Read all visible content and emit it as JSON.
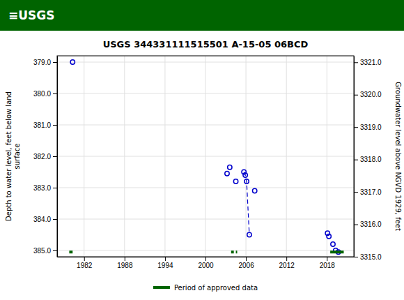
{
  "chart_data": {
    "type": "scatter",
    "title": "USGS 344331111515501 A-15-05 06BCD",
    "annotations": [
      {
        "text": "≡USGS",
        "color": "#006400"
      }
    ],
    "ylabel": "Depth to water level, feet below land\nsurface",
    "y2label": "Groundwater level above NGVD 1929, feet",
    "xlim": [
      1978,
      2022
    ],
    "xticks": [
      1982,
      1988,
      1994,
      2000,
      2006,
      2012,
      2018
    ],
    "ylim": [
      385.2,
      378.8
    ],
    "yticks": [
      {
        "value": 379.0,
        "label": "379.0"
      },
      {
        "value": 380.0,
        "label": "380.0"
      },
      {
        "value": 381.0,
        "label": "381.0"
      },
      {
        "value": 382.0,
        "label": "382.0"
      },
      {
        "value": 383.0,
        "label": "383.0"
      },
      {
        "value": 384.0,
        "label": "384.0"
      },
      {
        "value": 385.0,
        "label": "385.0"
      }
    ],
    "y2lim": [
      3315.0,
      3321.2
    ],
    "y2ticks": [
      {
        "value": 3315.0,
        "label": "3315.0"
      },
      {
        "value": 3316.0,
        "label": "3316.0"
      },
      {
        "value": 3317.0,
        "label": "3317.0"
      },
      {
        "value": 3318.0,
        "label": "3318.0"
      },
      {
        "value": 3319.0,
        "label": "3319.0"
      },
      {
        "value": 3320.0,
        "label": "3320.0"
      },
      {
        "value": 3321.0,
        "label": "3321.0"
      }
    ],
    "grid": true,
    "legend": "bottom",
    "series": [
      {
        "type": "scatter",
        "marker": "open-circle",
        "color": "#0000CC",
        "x": [
          1980.3,
          2003.2,
          2003.6,
          2004.5,
          2005.7,
          2005.9,
          2006.1,
          2006.5,
          2007.3,
          2018.1,
          2018.3,
          2018.9,
          2019.3,
          2019.7
        ],
        "values": [
          379.0,
          382.55,
          382.35,
          382.8,
          382.5,
          382.6,
          382.8,
          384.5,
          383.1,
          384.45,
          384.55,
          384.8,
          385.0,
          385.05
        ]
      },
      {
        "type": "line",
        "line_style": "dashed",
        "color": "#0000CC",
        "x": [
          2005.7,
          2005.9,
          2006.1,
          2006.5
        ],
        "values": [
          382.5,
          382.6,
          382.8,
          384.5
        ]
      },
      {
        "type": "segment",
        "name": "Period of approved data",
        "color": "#006400",
        "x_start": [
          1979.8,
          2003.8,
          2004.5,
          2018.5
        ],
        "x_end": [
          1980.3,
          2004.2,
          2004.7,
          2020.5
        ],
        "values": [
          385.05,
          385.05,
          385.05,
          385.05
        ]
      }
    ]
  }
}
